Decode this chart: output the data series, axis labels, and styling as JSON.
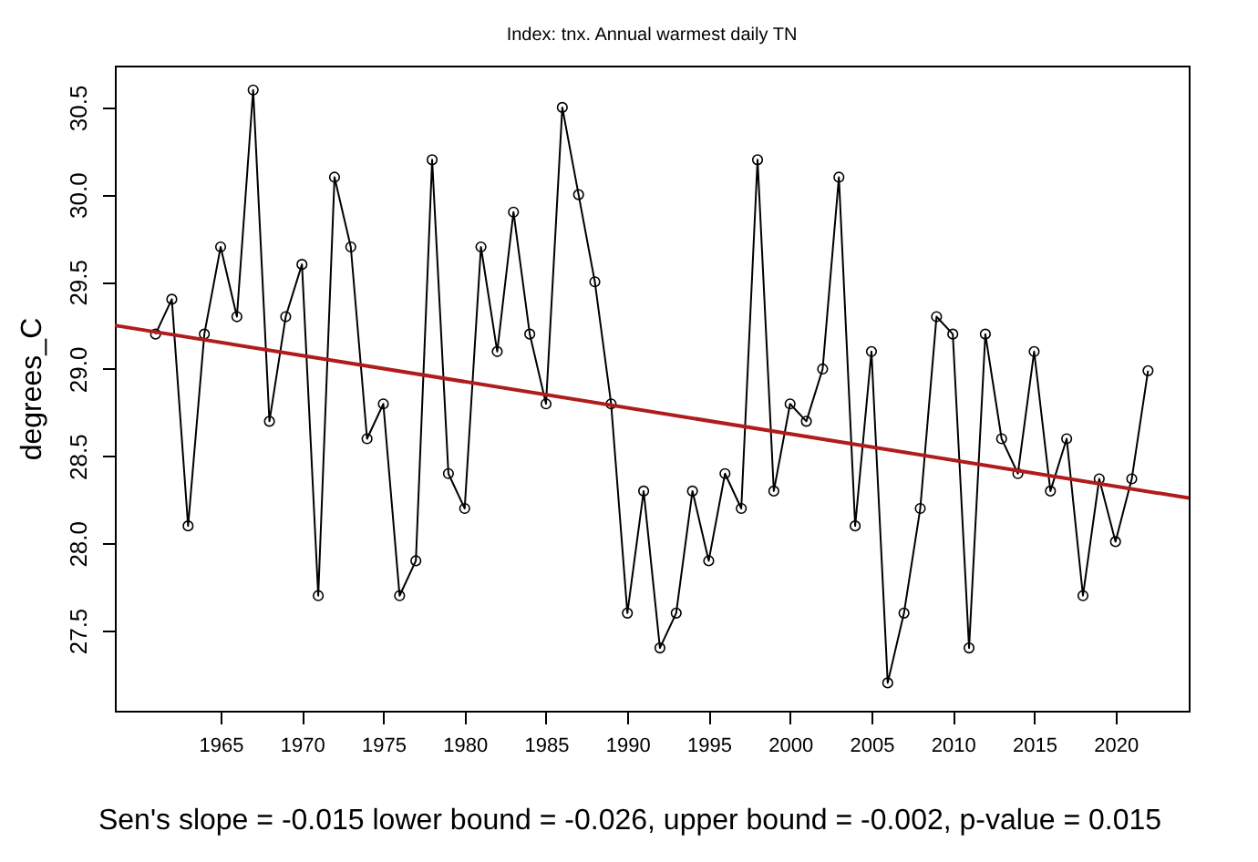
{
  "chart_data": {
    "type": "line",
    "title": "Index: tnx. Annual warmest daily TN",
    "ylabel": "degrees_C",
    "x": [
      1961,
      1962,
      1963,
      1964,
      1965,
      1966,
      1967,
      1968,
      1969,
      1970,
      1971,
      1972,
      1973,
      1974,
      1975,
      1976,
      1977,
      1978,
      1979,
      1980,
      1981,
      1982,
      1983,
      1984,
      1985,
      1986,
      1987,
      1988,
      1989,
      1990,
      1991,
      1992,
      1993,
      1994,
      1995,
      1996,
      1997,
      1998,
      1999,
      2000,
      2001,
      2002,
      2003,
      2004,
      2005,
      2006,
      2007,
      2008,
      2009,
      2010,
      2011,
      2012,
      2013,
      2014,
      2015,
      2016,
      2017,
      2018,
      2019,
      2020,
      2021,
      2022
    ],
    "series": [
      {
        "color": "#000000",
        "marker": "circle",
        "values": [
          29.2,
          29.4,
          28.1,
          29.2,
          29.7,
          29.3,
          30.6,
          28.7,
          29.3,
          29.6,
          27.7,
          30.1,
          29.7,
          28.6,
          28.8,
          27.7,
          27.9,
          30.2,
          28.4,
          28.2,
          29.7,
          29.1,
          29.9,
          29.2,
          28.8,
          30.5,
          30.0,
          29.5,
          28.8,
          27.6,
          28.3,
          27.4,
          27.6,
          28.3,
          27.9,
          28.4,
          28.2,
          30.2,
          28.3,
          28.8,
          28.7,
          29.0,
          30.1,
          28.1,
          29.1,
          27.2,
          27.6,
          28.2,
          29.3,
          29.2,
          27.4,
          29.2,
          28.6,
          28.4,
          29.1,
          28.3,
          28.6,
          27.7,
          28.37,
          28.01,
          28.37,
          28.99
        ]
      },
      {
        "type": "line",
        "color": "#b01c1c",
        "marker": "none",
        "x": [
          1958.5,
          2024.5
        ],
        "values": [
          29.25,
          28.26
        ]
      }
    ],
    "xlim": [
      1958.5,
      2024.5
    ],
    "xticks": [
      1965,
      1970,
      1975,
      1980,
      1985,
      1990,
      1995,
      2000,
      2005,
      2010,
      2015,
      2020
    ],
    "ylim": [
      27.04,
      30.74
    ],
    "yticks": [
      {
        "value": 27.5,
        "label": "27.5"
      },
      {
        "value": 28,
        "label": "28.0"
      },
      {
        "value": 28.5,
        "label": "28.5"
      },
      {
        "value": 29,
        "label": "29.0"
      },
      {
        "value": 29.5,
        "label": "29.5"
      },
      {
        "value": 30,
        "label": "30.0"
      },
      {
        "value": 30.5,
        "label": "30.5"
      }
    ],
    "grid": false,
    "annotations": [
      "Sen's slope = -0.015   lower bound = -0.026,   upper bound = -0.002,   p-value = 0.015"
    ]
  }
}
